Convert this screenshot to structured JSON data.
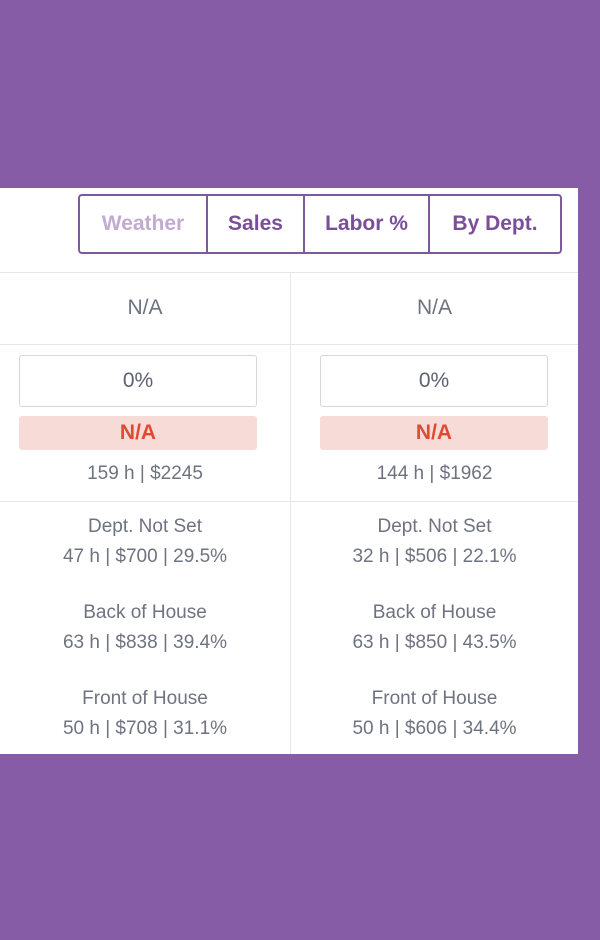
{
  "tabs": {
    "weather": "Weather",
    "sales": "Sales",
    "labor": "Labor %",
    "dept": "By Dept."
  },
  "columns": [
    {
      "weather": "N/A",
      "labor_pct": "0%",
      "labor_status": "N/A",
      "totals": "159 h | $2245",
      "departments": [
        {
          "name": "Dept. Not Set",
          "stats": "47 h | $700 | 29.5%"
        },
        {
          "name": "Back of House",
          "stats": "63 h | $838 | 39.4%"
        },
        {
          "name": "Front of House",
          "stats": "50 h | $708 | 31.1%"
        }
      ]
    },
    {
      "weather": "N/A",
      "labor_pct": "0%",
      "labor_status": "N/A",
      "totals": "144 h | $1962",
      "departments": [
        {
          "name": "Dept. Not Set",
          "stats": "32 h | $506 | 22.1%"
        },
        {
          "name": "Back of House",
          "stats": "63 h | $850 | 43.5%"
        },
        {
          "name": "Front of House",
          "stats": "50 h | $606 | 34.4%"
        }
      ]
    }
  ],
  "colors": {
    "background": "#875ca6",
    "accent": "#7a4f9a",
    "alert_text": "#e04a33",
    "alert_bg": "#f7dbd7"
  }
}
